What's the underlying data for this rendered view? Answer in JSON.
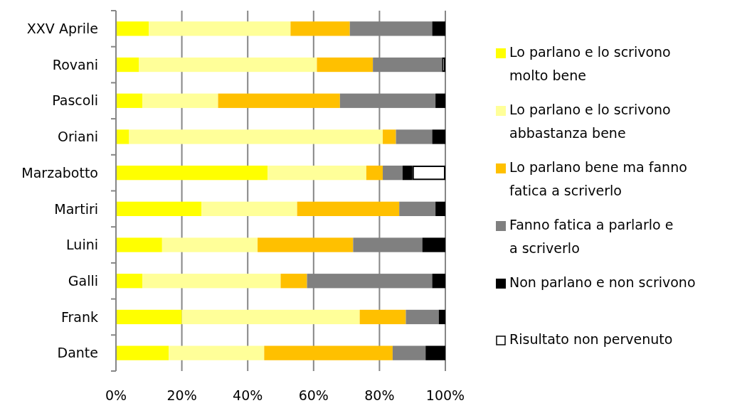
{
  "chart_data": {
    "type": "bar",
    "orientation": "horizontal",
    "stacked": true,
    "categories": [
      "XXV Aprile",
      "Rovani",
      "Pascoli",
      "Oriani",
      "Marzabotto",
      "Martiri",
      "Luini",
      "Galli",
      "Frank",
      "Dante"
    ],
    "series": [
      {
        "name": "Lo parlano e lo scrivono molto bene",
        "color": "#ffff00",
        "values": [
          10,
          7,
          8,
          4,
          46,
          26,
          14,
          8,
          20,
          16
        ]
      },
      {
        "name": "Lo parlano e lo scrivono abbastanza bene",
        "color": "#ffff99",
        "values": [
          43,
          54,
          23,
          77,
          30,
          29,
          29,
          42,
          54,
          29
        ]
      },
      {
        "name": "Lo parlano bene ma fanno fatica a scriverlo",
        "color": "#ffc000",
        "values": [
          18,
          17,
          37,
          4,
          5,
          31,
          29,
          8,
          14,
          39
        ]
      },
      {
        "name": "Fanno fatica  a parlarlo e a scriverlo",
        "color": "#808080",
        "values": [
          25,
          21,
          29,
          11,
          6,
          11,
          21,
          38,
          10,
          10
        ]
      },
      {
        "name": "Non parlano e non scrivono",
        "color": "#000000",
        "values": [
          4,
          0,
          3,
          4,
          3,
          3,
          7,
          4,
          2,
          6
        ]
      },
      {
        "name": "Risultato non pervenuto",
        "color": "#ffffff",
        "values": [
          0,
          1,
          0,
          0,
          10,
          0,
          0,
          0,
          0,
          0
        ]
      }
    ],
    "xlim": [
      0,
      100
    ],
    "xticks": [
      {
        "value": 0,
        "label": "0%"
      },
      {
        "value": 20,
        "label": "20%"
      },
      {
        "value": 40,
        "label": "40%"
      },
      {
        "value": 60,
        "label": "60%"
      },
      {
        "value": 80,
        "label": "80%"
      },
      {
        "value": 100,
        "label": "100%"
      }
    ],
    "grid": "x",
    "legend": "right"
  }
}
